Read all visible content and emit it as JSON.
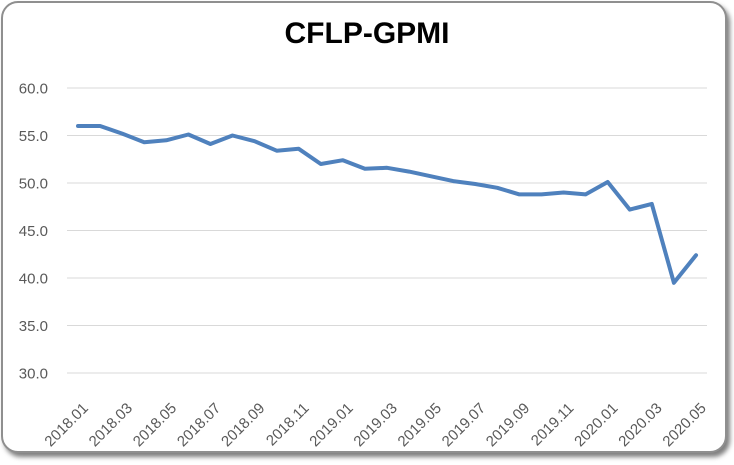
{
  "chart_data": {
    "type": "line",
    "title": "CFLP-GPMI",
    "series_name": "CFLP-GPMI",
    "x": [
      "2018.01",
      "2018.02",
      "2018.03",
      "2018.04",
      "2018.05",
      "2018.06",
      "2018.07",
      "2018.08",
      "2018.09",
      "2018.10",
      "2018.11",
      "2018.12",
      "2019.01",
      "2019.02",
      "2019.03",
      "2019.04",
      "2019.05",
      "2019.06",
      "2019.07",
      "2019.08",
      "2019.09",
      "2019.10",
      "2019.11",
      "2019.12",
      "2020.01",
      "2020.02",
      "2020.03",
      "2020.04",
      "2020.05"
    ],
    "values": [
      56.0,
      56.0,
      55.2,
      54.3,
      54.5,
      55.1,
      54.1,
      55.0,
      54.4,
      53.4,
      53.6,
      52.0,
      52.4,
      51.5,
      51.6,
      51.2,
      50.7,
      50.2,
      49.9,
      49.5,
      48.8,
      48.8,
      49.0,
      48.8,
      50.1,
      47.2,
      47.8,
      39.5,
      42.4
    ],
    "ylim": [
      30,
      60
    ],
    "y_tick_labels": [
      "60.0",
      "55.0",
      "50.0",
      "45.0",
      "40.0",
      "35.0",
      "30.0"
    ],
    "x_tick_labels": [
      "2018.01",
      "2018.03",
      "2018.05",
      "2018.07",
      "2018.09",
      "2018.11",
      "2019.01",
      "2019.03",
      "2019.05",
      "2019.07",
      "2019.09",
      "2019.11",
      "2020.01",
      "2020.03",
      "2020.05"
    ],
    "x_tick_step": 2,
    "x_label_rotation_deg": -45,
    "grid": "horizontal-only",
    "legend": "none",
    "colors": {
      "series": "#4F81BD",
      "gridline": "#D9D9D9",
      "axis_label": "#595959",
      "title": "#000000",
      "frame_border": "#8F8F8F"
    }
  }
}
